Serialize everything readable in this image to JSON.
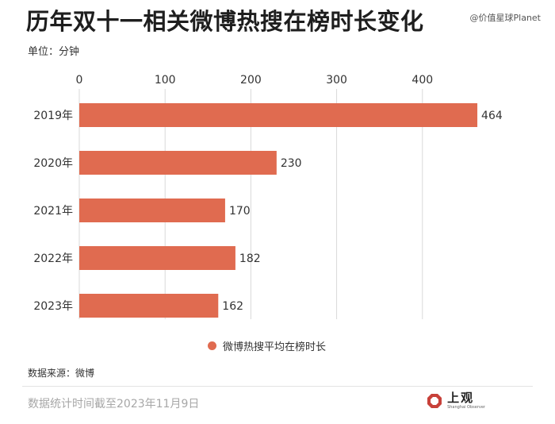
{
  "header": {
    "title": "历年双十一相关微博热搜在榜时长变化",
    "unit_label": "单位：分钟",
    "watermark": "@价值星球Planet"
  },
  "footer": {
    "source": "数据来源：微博",
    "footnote": "数据统计时间截至2023年11月9日",
    "brand_name": "上观",
    "brand_sub": "Shanghai Observer"
  },
  "colors": {
    "bar": "#e06b50",
    "axis_text": "#333333",
    "gridline": "#d9d9d9"
  },
  "chart_data": {
    "type": "bar",
    "orientation": "horizontal",
    "categories": [
      "2019年",
      "2020年",
      "2021年",
      "2022年",
      "2023年"
    ],
    "series": [
      {
        "name": "微博热搜平均在榜时长",
        "values": [
          464,
          230,
          170,
          182,
          162
        ]
      }
    ],
    "xlim": [
      0,
      480
    ],
    "xticks": [
      0,
      100,
      200,
      300,
      400
    ],
    "xaxis_position": "top",
    "grid": "vertical-lines",
    "legend": "bottom-center"
  }
}
